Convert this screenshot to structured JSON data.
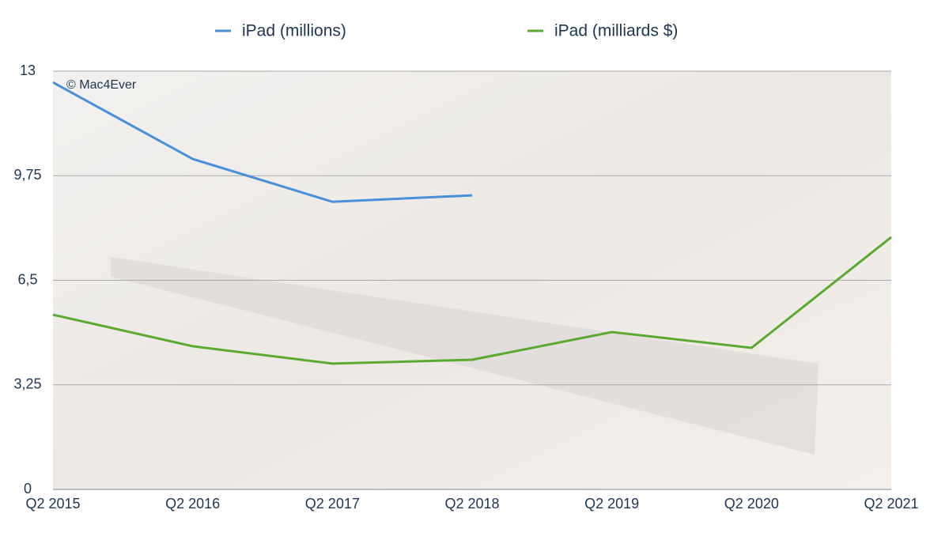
{
  "chart_data": {
    "type": "line",
    "annotation": "© Mac4Ever",
    "categories": [
      "Q2 2015",
      "Q2 2016",
      "Q2 2017",
      "Q2 2018",
      "Q2 2019",
      "Q2 2020",
      "Q2 2021"
    ],
    "series": [
      {
        "name": "iPad (millions)",
        "color": "#4a90d9",
        "values": [
          12.65,
          10.27,
          8.94,
          9.14,
          null,
          null,
          null
        ]
      },
      {
        "name": "iPad (milliards $)",
        "color": "#5aaa32",
        "values": [
          5.43,
          4.45,
          3.91,
          4.03,
          4.89,
          4.4,
          7.84
        ]
      }
    ],
    "ylim": [
      0,
      13
    ],
    "yticks": [
      0,
      {
        "value": 3.25,
        "label": "3,25"
      },
      {
        "value": 6.5,
        "label": "6,5"
      },
      {
        "value": 9.75,
        "label": "9,75"
      },
      13
    ],
    "grid": true
  }
}
